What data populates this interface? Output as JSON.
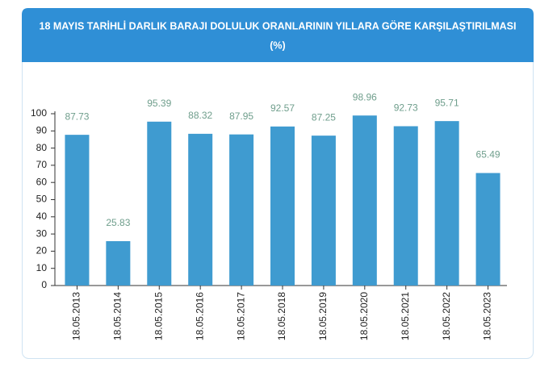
{
  "chart_data": {
    "type": "bar",
    "title": "18 MAYIS TARİHLİ DARLIK BARAJI DOLULUK ORANLARININ YILLARA GÖRE KARŞILAŞTIRILMASI",
    "subtitle": "(%)",
    "categories": [
      "18.05.2013",
      "18.05.2014",
      "18.05.2015",
      "18.05.2016",
      "18.05.2017",
      "18.05.2018",
      "18.05.2019",
      "18.05.2020",
      "18.05.2021",
      "18.05.2022",
      "18.05.2023"
    ],
    "values": [
      87.73,
      25.83,
      95.39,
      88.32,
      87.95,
      92.57,
      87.25,
      98.96,
      92.73,
      95.71,
      65.49
    ],
    "color": "#3f9bd0",
    "ylim": [
      0,
      100
    ],
    "yticks": [
      0,
      10,
      20,
      30,
      40,
      50,
      60,
      70,
      80,
      90,
      100
    ],
    "grid": false
  }
}
